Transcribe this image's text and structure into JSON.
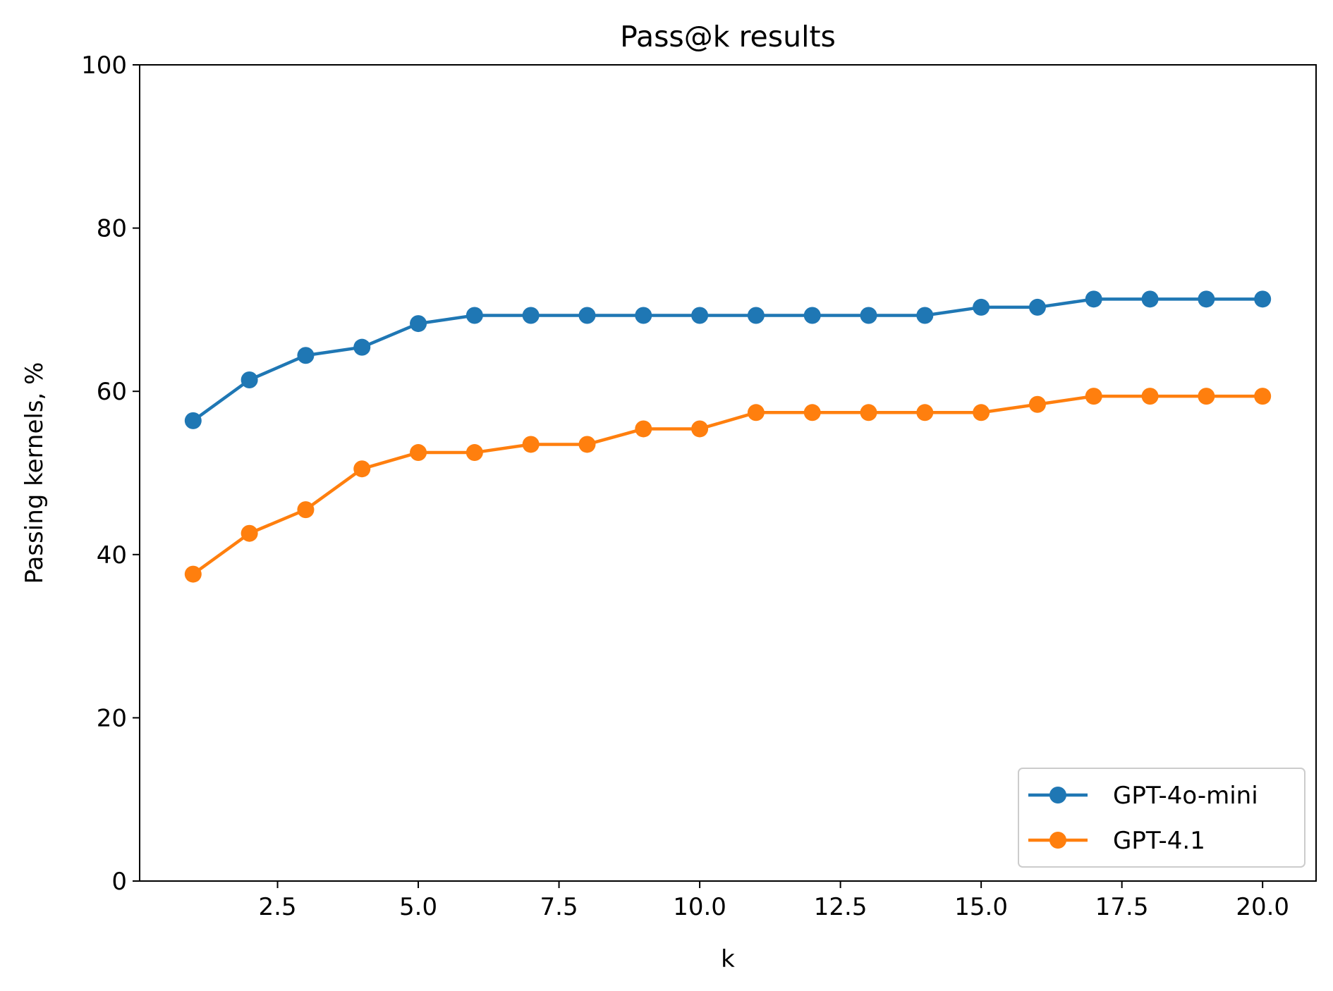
{
  "chart_data": {
    "type": "line",
    "title": "Pass@k results",
    "xlabel": "k",
    "ylabel": "Passing kernels, %",
    "xlim": [
      0.05,
      20.95
    ],
    "ylim": [
      0,
      100
    ],
    "xticks": [
      2.5,
      5.0,
      7.5,
      10.0,
      12.5,
      15.0,
      17.5,
      20.0
    ],
    "xtick_labels": [
      "2.5",
      "5.0",
      "7.5",
      "10.0",
      "12.5",
      "15.0",
      "17.5",
      "20.0"
    ],
    "yticks": [
      0,
      20,
      40,
      60,
      80,
      100
    ],
    "ytick_labels": [
      "0",
      "20",
      "40",
      "60",
      "80",
      "100"
    ],
    "grid": false,
    "legend_position": "lower-right",
    "x": [
      1,
      2,
      3,
      4,
      5,
      6,
      7,
      8,
      9,
      10,
      11,
      12,
      13,
      14,
      15,
      16,
      17,
      18,
      19,
      20
    ],
    "series": [
      {
        "name": "GPT-4o-mini",
        "color": "#1f77b4",
        "values": [
          56.4,
          61.4,
          64.4,
          65.4,
          68.3,
          69.3,
          69.3,
          69.3,
          69.3,
          69.3,
          69.3,
          69.3,
          69.3,
          69.3,
          70.3,
          70.3,
          71.3,
          71.3,
          71.3,
          71.3
        ]
      },
      {
        "name": "GPT-4.1",
        "color": "#ff7f0e",
        "values": [
          37.6,
          42.6,
          45.5,
          50.5,
          52.5,
          52.5,
          53.5,
          53.5,
          55.4,
          55.4,
          57.4,
          57.4,
          57.4,
          57.4,
          57.4,
          58.4,
          59.4,
          59.4,
          59.4,
          59.4
        ]
      }
    ]
  }
}
